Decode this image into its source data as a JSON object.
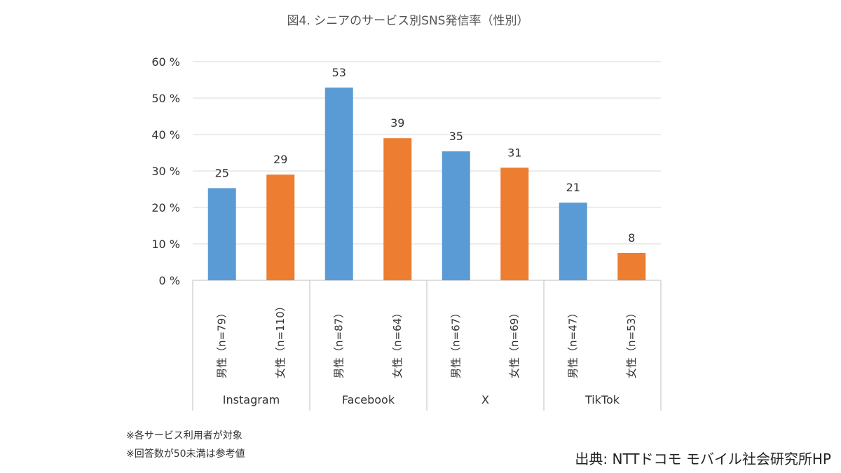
{
  "chart_data": {
    "type": "bar",
    "title": "図4. シニアのサービス別SNS発信率（性別）",
    "xlabel": "",
    "ylabel": "",
    "ylim": [
      0,
      60
    ],
    "yticks": [
      0,
      10,
      20,
      30,
      40,
      50,
      60
    ],
    "ytick_labels": [
      "0 %",
      "10 %",
      "20 %",
      "30 %",
      "40 %",
      "50 %",
      "60 %"
    ],
    "grid": true,
    "groups": [
      "Instagram",
      "Facebook",
      "X",
      "TikTok"
    ],
    "categories": [
      "男性（n=79）",
      "女性（n=110）",
      "男性（n=87）",
      "女性（n=64）",
      "男性（n=67）",
      "女性（n=69）",
      "男性（n=47）",
      "女性（n=53）"
    ],
    "values": [
      25.3,
      29,
      52.9,
      39,
      35.4,
      30.9,
      21.3,
      7.5
    ],
    "data_labels": [
      "25",
      "29",
      "53",
      "39",
      "35",
      "31",
      "21",
      "8"
    ],
    "colors": [
      "#5b9bd5",
      "#ed7d31",
      "#5b9bd5",
      "#ed7d31",
      "#5b9bd5",
      "#ed7d31",
      "#5b9bd5",
      "#ed7d31"
    ]
  },
  "notes": [
    "※各サービス利用者が対象",
    "※回答数が50未満は参考値"
  ],
  "source": "出典: NTTドコモ モバイル社会研究所HP"
}
